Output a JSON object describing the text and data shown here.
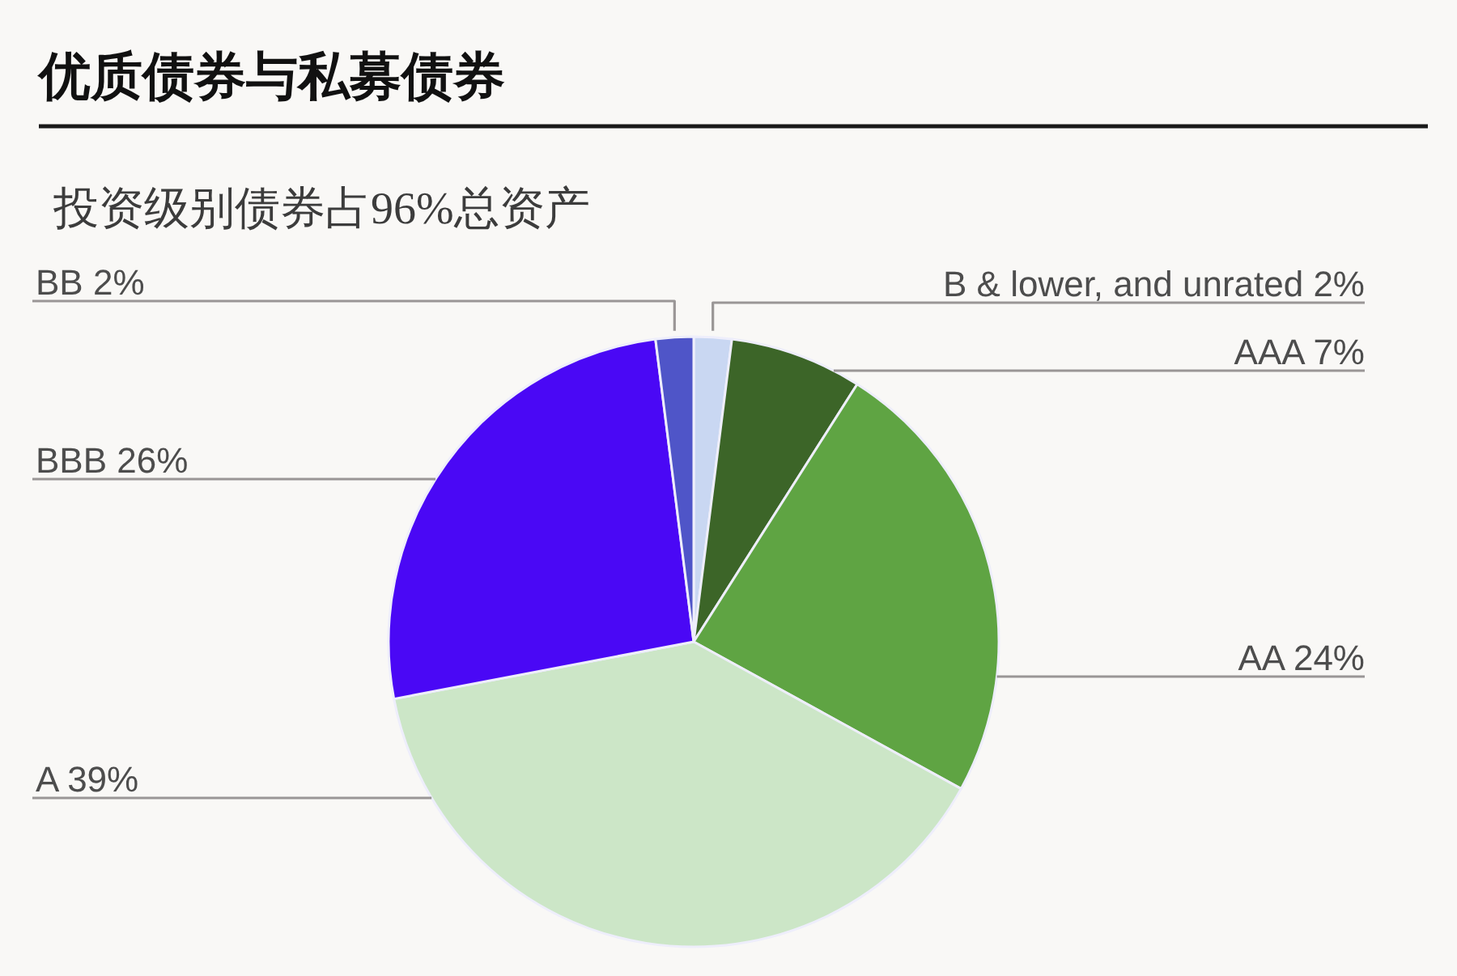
{
  "chart_data": {
    "type": "pie",
    "title": "优质债券与私募债券",
    "subtitle": "投资级别债券占96%总资产",
    "categories": [
      "B & lower, and unrated",
      "AAA",
      "AA",
      "A",
      "BBB",
      "BB"
    ],
    "values": [
      2,
      7,
      24,
      39,
      26,
      2
    ],
    "value_labels": [
      "2%",
      "7%",
      "24%",
      "39%",
      "26%",
      "2%"
    ],
    "colors": [
      "#c9d7f2",
      "#3c6528",
      "#5fa443",
      "#cce6c7",
      "#4a08f5",
      "#4f55c8"
    ]
  }
}
